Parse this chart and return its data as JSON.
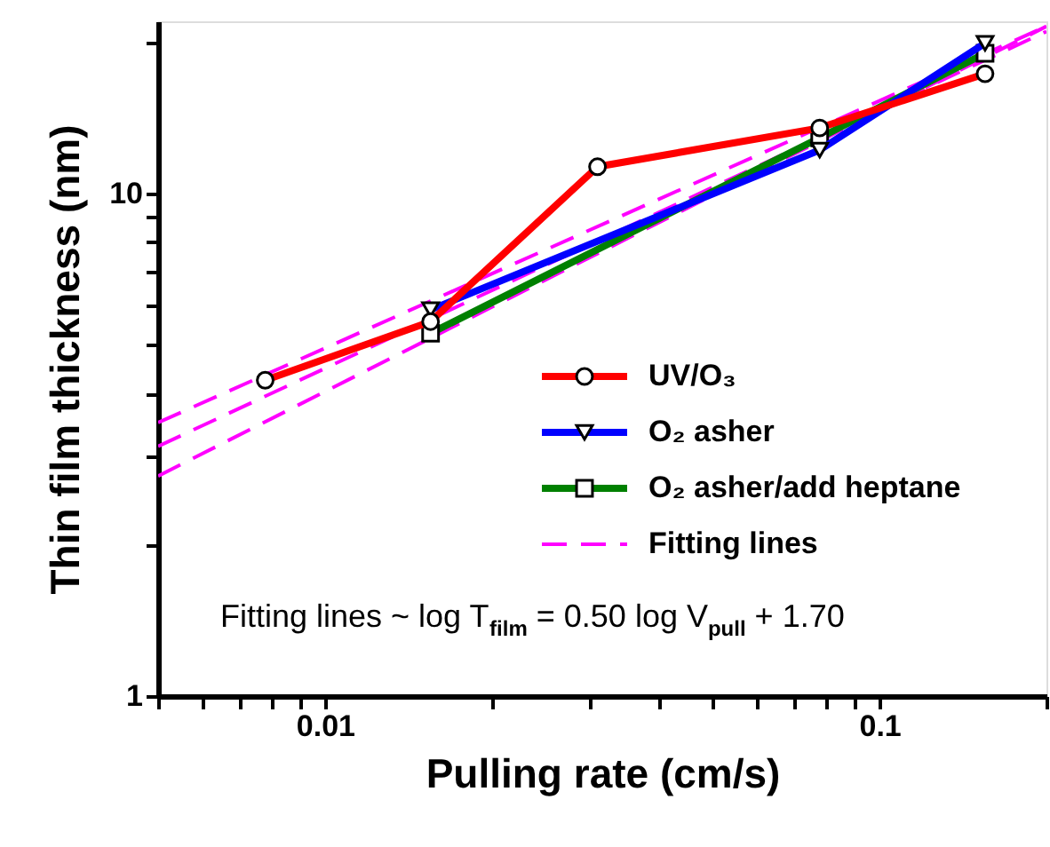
{
  "chart_data": {
    "type": "line",
    "xlabel": "Pulling rate (cm/s)",
    "ylabel": "Thin film thickness (nm)",
    "log": "xy",
    "xlim": [
      0.005,
      0.2
    ],
    "ylim": [
      1,
      22
    ],
    "xticks": [
      {
        "value": 0.005,
        "label": null
      },
      {
        "value": 0.006,
        "label": null
      },
      {
        "value": 0.007,
        "label": null
      },
      {
        "value": 0.008,
        "label": null
      },
      {
        "value": 0.009,
        "label": null
      },
      0.01,
      {
        "value": 0.02,
        "label": null
      },
      {
        "value": 0.03,
        "label": null
      },
      {
        "value": 0.04,
        "label": null
      },
      {
        "value": 0.05,
        "label": null
      },
      {
        "value": 0.06,
        "label": null
      },
      {
        "value": 0.07,
        "label": null
      },
      {
        "value": 0.08,
        "label": null
      },
      {
        "value": 0.09,
        "label": null
      },
      0.1,
      {
        "value": 0.2,
        "label": null
      }
    ],
    "yticks": [
      1,
      {
        "value": 2,
        "label": null
      },
      {
        "value": 3,
        "label": null
      },
      {
        "value": 4,
        "label": null
      },
      {
        "value": 5,
        "label": null
      },
      {
        "value": 6,
        "label": null
      },
      {
        "value": 7,
        "label": null
      },
      {
        "value": 8,
        "label": null
      },
      {
        "value": 9,
        "label": null
      },
      10,
      {
        "value": 20,
        "label": null
      }
    ],
    "grid": false,
    "legend": "right",
    "series": [
      {
        "type": "line",
        "line_style": "dashed",
        "marker": "none",
        "name": "Fitting lines",
        "color": "#ff00ff",
        "x": [
          0.005,
          0.2
        ],
        "values": [
          3.5,
          21.5
        ]
      },
      {
        "type": "line",
        "line_style": "dashed",
        "marker": "none",
        "color": "#ff00ff",
        "x": [
          0.005,
          0.2
        ],
        "values": [
          3.14,
          21
        ]
      },
      {
        "type": "line",
        "line_style": "dashed",
        "marker": "none",
        "color": "#ff00ff",
        "x": [
          0.005,
          0.2
        ],
        "values": [
          2.74,
          21.5
        ]
      },
      {
        "type": "line",
        "line_style": "solid",
        "marker": "square",
        "name": "O₂ asher/add heptane",
        "color": "#008000",
        "x": [
          0.0155,
          0.078,
          0.155
        ],
        "values": [
          5.27,
          12.9,
          19.0
        ]
      },
      {
        "type": "line",
        "line_style": "solid",
        "marker": "triangle",
        "name": "O₂ asher",
        "color": "#0000ff",
        "x": [
          0.0155,
          0.078,
          0.155
        ],
        "values": [
          5.87,
          12.2,
          19.9
        ]
      },
      {
        "type": "line",
        "line_style": "solid",
        "marker": "circle",
        "name": "UV/O₃",
        "color": "#ff0000",
        "x": [
          0.0078,
          0.0155,
          0.031,
          0.078,
          0.155
        ],
        "values": [
          4.25,
          5.56,
          11.3,
          13.5,
          17.3
        ]
      }
    ],
    "annotations": [
      "Fitting lines ~ log T$_{film}$ = 0.50 log V$_{pull}$ + 1.70"
    ]
  }
}
